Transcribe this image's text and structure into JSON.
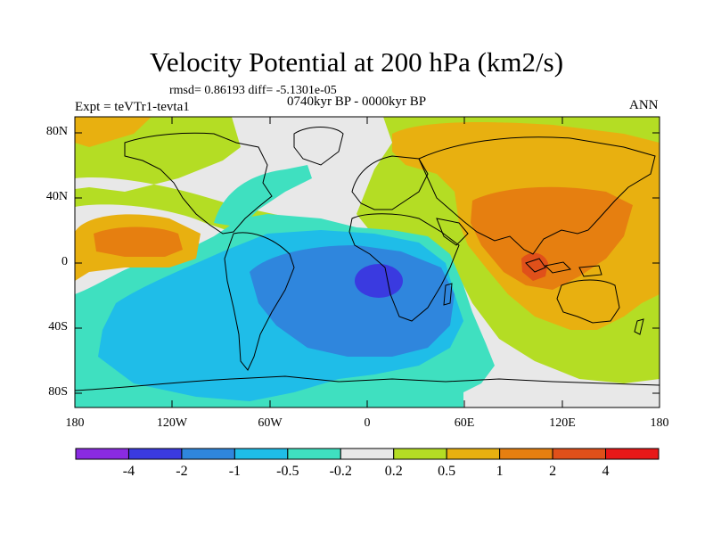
{
  "title": "Velocity Potential at 200 hPa (km2/s)",
  "stats": "rmsd= 0.86193 diff= -5.1301e-05",
  "period": "0740kyr BP - 0000kyr BP",
  "experiment": "Expt = teVTr1-tevta1",
  "season": "ANN",
  "y_axis": [
    "80N",
    "40N",
    "0",
    "40S",
    "80S"
  ],
  "x_axis": [
    "180",
    "120W",
    "60W",
    "0",
    "60E",
    "120E",
    "180"
  ],
  "colorbar": {
    "colors": [
      "#8a2be2",
      "#3a3ae0",
      "#2f86dd",
      "#1fbde8",
      "#3fe0c0",
      "#e8e8e8",
      "#b4dd24",
      "#e8b010",
      "#e67f10",
      "#e0501a",
      "#e81818"
    ],
    "labels": [
      "-4",
      "-2",
      "-1",
      "-0.5",
      "-0.2",
      "0.2",
      "0.5",
      "1",
      "2",
      "4"
    ]
  }
}
